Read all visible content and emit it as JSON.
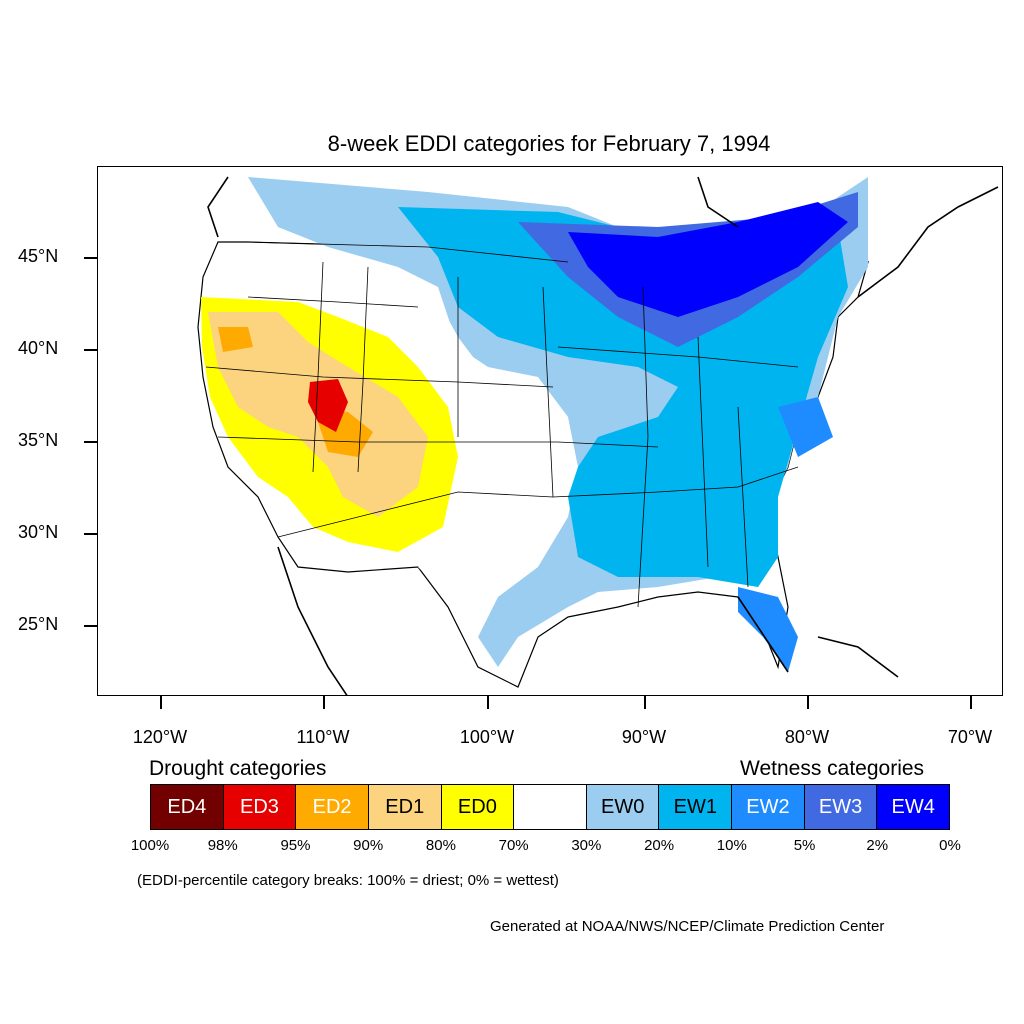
{
  "title": "8-week EDDI categories for February 7, 1994",
  "lat_labels": [
    "45°N",
    "40°N",
    "35°N",
    "30°N",
    "25°N"
  ],
  "lon_labels": [
    "120°W",
    "110°W",
    "100°W",
    "90°W",
    "80°W",
    "70°W"
  ],
  "legend": {
    "drought_heading": "Drought categories",
    "wetness_heading": "Wetness categories",
    "categories": [
      {
        "label": "ED4",
        "color": "#730000",
        "text_color": "#ffffff"
      },
      {
        "label": "ED3",
        "color": "#e60000",
        "text_color": "#ffffff"
      },
      {
        "label": "ED2",
        "color": "#ffaa00",
        "text_color": "#ffffff"
      },
      {
        "label": "ED1",
        "color": "#fcd37f",
        "text_color": "#000000"
      },
      {
        "label": "ED0",
        "color": "#ffff00",
        "text_color": "#000000"
      },
      {
        "label": "",
        "color": "#ffffff",
        "text_color": "#000000"
      },
      {
        "label": "EW0",
        "color": "#9bcdf0",
        "text_color": "#000000"
      },
      {
        "label": "EW1",
        "color": "#00b4f0",
        "text_color": "#000000"
      },
      {
        "label": "EW2",
        "color": "#1e8cff",
        "text_color": "#ffffff"
      },
      {
        "label": "EW3",
        "color": "#4169e1",
        "text_color": "#ffffff"
      },
      {
        "label": "EW4",
        "color": "#0000ff",
        "text_color": "#ffffff"
      }
    ],
    "breaks": [
      "100%",
      "98%",
      "95%",
      "90%",
      "80%",
      "70%",
      "30%",
      "20%",
      "10%",
      "5%",
      "2%",
      "0%"
    ]
  },
  "note": "(EDDI-percentile category breaks: 100% = driest; 0% = wettest)",
  "credit": "Generated at NOAA/NWS/NCEP/Climate Prediction Center"
}
